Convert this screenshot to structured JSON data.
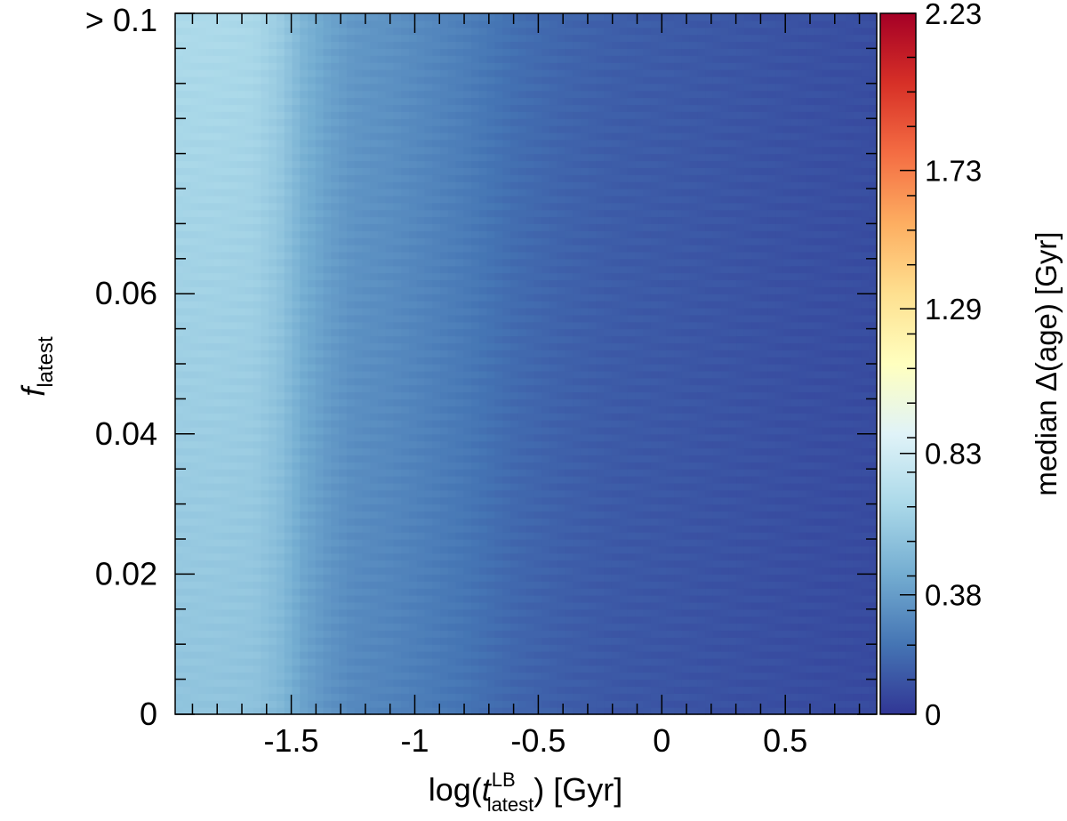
{
  "chart_data": {
    "type": "heatmap",
    "title": "",
    "xlabel": {
      "prefix": "log(",
      "var": "t",
      "superscript": "LB",
      "subscript": "latest",
      "suffix": ") [Gyr]"
    },
    "ylabel": {
      "var": "f",
      "subscript": "latest"
    },
    "xlim": [
      -1.97,
      0.87
    ],
    "ylim": [
      0,
      0.1
    ],
    "x_ticks": [
      {
        "value": -1.5,
        "label": "-1.5"
      },
      {
        "value": -1,
        "label": "-1"
      },
      {
        "value": -0.5,
        "label": "-0.5"
      },
      {
        "value": 0,
        "label": "0"
      },
      {
        "value": 0.5,
        "label": "0.5"
      }
    ],
    "x_minor_step": 0.1,
    "y_ticks": [
      {
        "value": 0,
        "label": "0"
      },
      {
        "value": 0.02,
        "label": "0.02"
      },
      {
        "value": 0.04,
        "label": "0.04"
      },
      {
        "value": 0.06,
        "label": "0.06"
      },
      {
        "value": 0.1,
        "label": "> 0.1"
      }
    ],
    "y_minor_step": 0.005,
    "grid": false,
    "colorbar": {
      "label": "median Δ(age)  [Gyr]",
      "colormap": "RdYlBu_r",
      "range": [
        0,
        2.23
      ],
      "minor_step": 0.11,
      "ticks": [
        {
          "value": 0,
          "label": "0"
        },
        {
          "value": 0.38,
          "label": "0.38"
        },
        {
          "value": 0.83,
          "label": "0.83"
        },
        {
          "value": 1.29,
          "label": "1.29"
        },
        {
          "value": 1.73,
          "label": "1.73"
        },
        {
          "value": 2.23,
          "label": "2.23"
        }
      ]
    },
    "z_profile": {
      "x": [
        -1.97,
        -1.8,
        -1.65,
        -1.55,
        -1.45,
        -1.35,
        -1.25,
        -1.1,
        -1.0,
        -0.8,
        -0.6,
        -0.4,
        -0.2,
        0.0,
        0.2,
        0.4,
        0.6,
        0.87
      ],
      "z": [
        0.56,
        0.56,
        0.55,
        0.5,
        0.4,
        0.34,
        0.3,
        0.28,
        0.26,
        0.22,
        0.17,
        0.14,
        0.12,
        0.11,
        0.1,
        0.09,
        0.08,
        0.07
      ]
    },
    "f_gradient": 0.6
  }
}
